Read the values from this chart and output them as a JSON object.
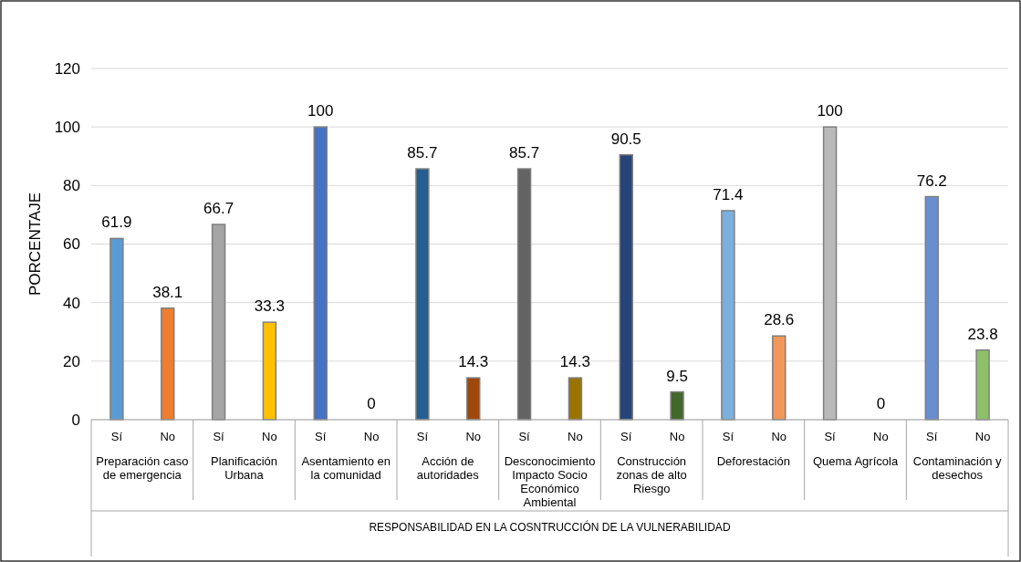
{
  "chart_data": {
    "type": "bar",
    "ylabel": "PORCENTAJE",
    "categories": [
      "Sí",
      "No",
      "Sí",
      "No",
      "Sí",
      "No",
      "Sí",
      "No",
      "Sí",
      "No",
      "Sí",
      "No",
      "Sí",
      "No",
      "Sí",
      "No",
      "Sí",
      "No"
    ],
    "values": [
      61.9,
      38.1,
      66.7,
      33.3,
      100,
      0,
      85.7,
      14.3,
      85.7,
      14.3,
      90.5,
      9.5,
      71.4,
      28.6,
      100,
      0,
      76.2,
      23.8
    ],
    "colors": [
      "#5b9bd5",
      "#ed7d31",
      "#a5a5a5",
      "#ffc000",
      "#4472c4",
      "#70ad47",
      "#255e91",
      "#9e480e",
      "#636363",
      "#997300",
      "#264478",
      "#43682b",
      "#7cafdd",
      "#f1975a",
      "#b9b9b9",
      "#ffcd33",
      "#698ed0",
      "#8cc168"
    ],
    "annotations": [
      "Preparación caso de emergencia",
      "Planificación Urbana",
      "Asentamiento en la comunidad",
      "Acción de autoridades",
      "Desconocimiento Impacto Socio Económico Ambiental",
      "Construcción zonas de alto Riesgo",
      "Deforestación",
      "Quema Agrícola",
      "Contaminación y desechos",
      "RESPONSABILIDAD EN LA COSNTRUCCIÓN DE LA VULNERABILIDAD"
    ],
    "ylim": [
      0,
      120
    ],
    "yticks": [
      0,
      20,
      40,
      60,
      80,
      100,
      120
    ],
    "grid": "y",
    "data_labels": true
  }
}
